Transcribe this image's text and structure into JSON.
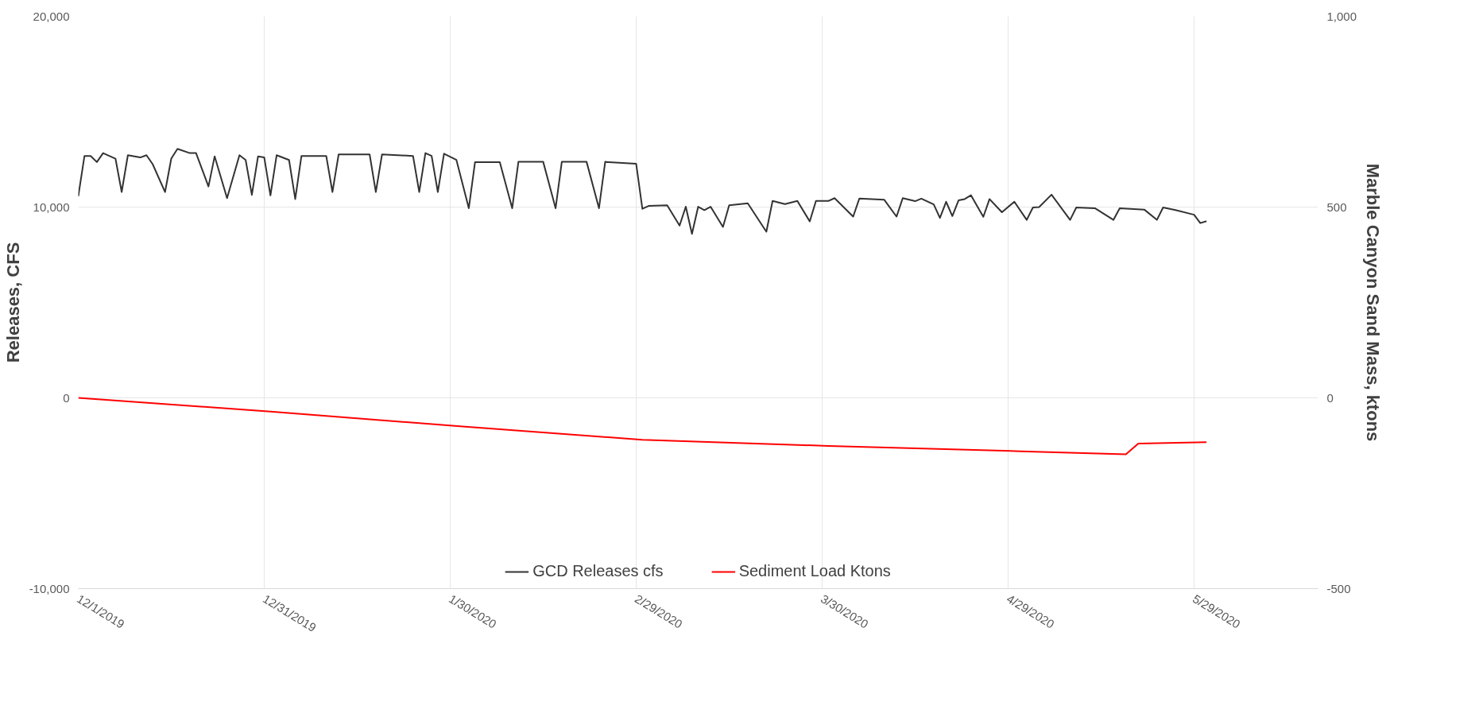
{
  "chart_data": {
    "type": "line",
    "ylabel": "Releases, CFS",
    "y2label": "Marble Canyon Sand Mass, ktons",
    "xlim": [
      "2019-12-01",
      "2020-06-18"
    ],
    "xticks": [
      {
        "value": "2019-12-01",
        "label": "12/1/2019"
      },
      {
        "value": "2019-12-31",
        "label": "12/31/2019"
      },
      {
        "value": "2020-01-30",
        "label": "1/30/2020"
      },
      {
        "value": "2020-02-29",
        "label": "2/29/2020"
      },
      {
        "value": "2020-03-30",
        "label": "3/30/2020"
      },
      {
        "value": "2020-04-29",
        "label": "4/29/2020"
      },
      {
        "value": "2020-05-29",
        "label": "5/29/2020"
      }
    ],
    "ylim": [
      -10000,
      20000
    ],
    "yticks": [
      {
        "value": -10000,
        "label": "-10,000"
      },
      0,
      {
        "value": 10000,
        "label": "10,000"
      },
      {
        "value": 20000,
        "label": "20,000"
      }
    ],
    "y2lim": [
      -500,
      1000
    ],
    "y2ticks": [
      -500,
      0,
      500,
      {
        "value": 1000,
        "label": "1,000"
      }
    ],
    "grid": true,
    "legend": "bottom",
    "line_style": "solid",
    "marker": "none",
    "series": [
      {
        "name": "GCD Releases cfs",
        "color": "#333333",
        "x": [
          "2019-12-01",
          "2019-12-02",
          "2019-12-03",
          "2019-12-04",
          "2019-12-05",
          "2019-12-07",
          "2019-12-08",
          "2019-12-09",
          "2019-12-11",
          "2019-12-12",
          "2019-12-13",
          "2019-12-15",
          "2019-12-16",
          "2019-12-17",
          "2019-12-19",
          "2019-12-20",
          "2019-12-22",
          "2019-12-23",
          "2019-12-25",
          "2019-12-27",
          "2019-12-28",
          "2019-12-29",
          "2019-12-30",
          "2019-12-31",
          "2020-01-01",
          "2020-01-02",
          "2020-01-04",
          "2020-01-05",
          "2020-01-06",
          "2020-01-10",
          "2020-01-11",
          "2020-01-12",
          "2020-01-17",
          "2020-01-18",
          "2020-01-19",
          "2020-01-24",
          "2020-01-25",
          "2020-01-26",
          "2020-01-27",
          "2020-01-28",
          "2020-01-29",
          "2020-01-31",
          "2020-02-02",
          "2020-02-03",
          "2020-02-07",
          "2020-02-09",
          "2020-02-10",
          "2020-02-14",
          "2020-02-16",
          "2020-02-17",
          "2020-02-21",
          "2020-02-23",
          "2020-02-24",
          "2020-02-29",
          "2020-03-01",
          "2020-03-02",
          "2020-03-05",
          "2020-03-07",
          "2020-03-08",
          "2020-03-09",
          "2020-03-10",
          "2020-03-11",
          "2020-03-12",
          "2020-03-14",
          "2020-03-15",
          "2020-03-18",
          "2020-03-21",
          "2020-03-22",
          "2020-03-24",
          "2020-03-26",
          "2020-03-28",
          "2020-03-29",
          "2020-03-31",
          "2020-04-01",
          "2020-04-04",
          "2020-04-05",
          "2020-04-09",
          "2020-04-11",
          "2020-04-12",
          "2020-04-14",
          "2020-04-15",
          "2020-04-17",
          "2020-04-18",
          "2020-04-19",
          "2020-04-20",
          "2020-04-21",
          "2020-04-22",
          "2020-04-23",
          "2020-04-25",
          "2020-04-26",
          "2020-04-28",
          "2020-04-30",
          "2020-05-02",
          "2020-05-03",
          "2020-05-04",
          "2020-05-06",
          "2020-05-09",
          "2020-05-10",
          "2020-05-13",
          "2020-05-16",
          "2020-05-17",
          "2020-05-21",
          "2020-05-23",
          "2020-05-24",
          "2020-05-26",
          "2020-05-29",
          "2020-05-30",
          "2020-05-31"
        ],
        "values": [
          10570,
          12680,
          12680,
          12360,
          12830,
          12540,
          10790,
          12720,
          12600,
          12720,
          12250,
          10790,
          12540,
          13050,
          12830,
          12830,
          11080,
          12660,
          10470,
          12720,
          12470,
          10640,
          12660,
          12600,
          10610,
          12720,
          12470,
          10420,
          12680,
          12680,
          10790,
          12760,
          12760,
          10790,
          12760,
          12680,
          10790,
          12830,
          12680,
          10790,
          12800,
          12470,
          9940,
          12350,
          12350,
          9940,
          12370,
          12370,
          9940,
          12370,
          12370,
          9940,
          12370,
          12270,
          9910,
          10060,
          10090,
          9030,
          10020,
          8590,
          10020,
          9840,
          10020,
          8960,
          10090,
          10200,
          8710,
          10320,
          10160,
          10320,
          9250,
          10320,
          10320,
          10470,
          9500,
          10450,
          10390,
          9500,
          10470,
          10310,
          10440,
          10140,
          9430,
          10280,
          9530,
          10350,
          10420,
          10620,
          9490,
          10420,
          9730,
          10280,
          9330,
          9980,
          10000,
          10650,
          9330,
          9980,
          9940,
          9330,
          9940,
          9860,
          9330,
          9980,
          9840,
          9600,
          9160,
          9260
        ]
      },
      {
        "name": "Sediment Load Ktons",
        "color": "#ff0000",
        "axis": "y2",
        "x": [
          "2019-12-01",
          "2020-01-01",
          "2020-02-01",
          "2020-03-01",
          "2020-03-31",
          "2020-05-01",
          "2020-05-18",
          "2020-05-20",
          "2020-05-31"
        ],
        "values": [
          0,
          -36,
          -75,
          -110,
          -126,
          -140,
          -148,
          -120,
          -116
        ]
      }
    ]
  }
}
